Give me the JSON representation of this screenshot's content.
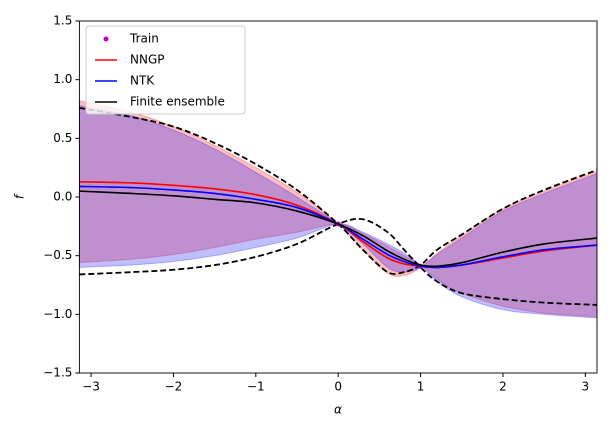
{
  "chart_data": {
    "type": "line",
    "xlabel": "α",
    "ylabel": "f",
    "xlim": [
      -3.14159,
      3.14159
    ],
    "ylim": [
      -1.5,
      1.5
    ],
    "xticks": [
      {
        "value": -3,
        "label": "−3"
      },
      {
        "value": -2,
        "label": "−2"
      },
      {
        "value": -1,
        "label": "−1"
      },
      0,
      1,
      2,
      3
    ],
    "yticks": [
      {
        "value": -1.5,
        "label": "−1.5"
      },
      {
        "value": -1.0,
        "label": "−1.0"
      },
      {
        "value": -0.5,
        "label": "−0.5"
      },
      {
        "value": 0,
        "label": "0.0"
      },
      0.5,
      {
        "value": 1,
        "label": "1.0"
      },
      1.5
    ],
    "legend": "upper left",
    "grid": false,
    "x": [
      -3.14159,
      -2.5,
      -2,
      -1.5,
      -1,
      -0.5,
      0,
      0.3,
      0.6,
      0.8,
      1.0,
      1.2,
      1.5,
      2,
      2.5,
      3.14159
    ],
    "series": [
      {
        "name": "Train",
        "color": "#bf00bf",
        "marker": "dot",
        "x": [
          0,
          1.0
        ],
        "values": [
          -0.23,
          -0.59
        ]
      },
      {
        "name": "NNGP",
        "color": "#ff0000",
        "band_style": "fill",
        "fill_opacity": 0.25,
        "values": [
          0.13,
          0.12,
          0.1,
          0.07,
          0.02,
          -0.07,
          -0.23,
          -0.38,
          -0.52,
          -0.57,
          -0.59,
          -0.6,
          -0.58,
          -0.52,
          -0.46,
          -0.41
        ],
        "band_upper": [
          0.82,
          0.72,
          0.6,
          0.44,
          0.25,
          0.04,
          -0.23,
          -0.45,
          -0.65,
          -0.67,
          -0.6,
          -0.48,
          -0.33,
          -0.1,
          0.05,
          0.22
        ],
        "band_lower": [
          -0.56,
          -0.53,
          -0.49,
          -0.43,
          -0.36,
          -0.3,
          -0.23,
          -0.31,
          -0.42,
          -0.5,
          -0.58,
          -0.7,
          -0.82,
          -0.93,
          -0.99,
          -1.02
        ]
      },
      {
        "name": "NTK",
        "color": "#0000ff",
        "band_style": "fill",
        "fill_opacity": 0.25,
        "values": [
          0.09,
          0.08,
          0.06,
          0.03,
          -0.02,
          -0.09,
          -0.23,
          -0.36,
          -0.49,
          -0.55,
          -0.59,
          -0.6,
          -0.58,
          -0.51,
          -0.45,
          -0.41
        ],
        "band_upper": [
          0.78,
          0.69,
          0.57,
          0.41,
          0.21,
          0.0,
          -0.23,
          -0.4,
          -0.6,
          -0.64,
          -0.6,
          -0.49,
          -0.35,
          -0.12,
          0.03,
          0.2
        ],
        "band_lower": [
          -0.6,
          -0.58,
          -0.55,
          -0.5,
          -0.43,
          -0.35,
          -0.23,
          -0.3,
          -0.4,
          -0.48,
          -0.58,
          -0.72,
          -0.85,
          -0.96,
          -1.0,
          -1.03
        ]
      },
      {
        "name": "Finite ensemble",
        "color": "#000000",
        "band_style": "dashed",
        "values": [
          0.05,
          0.03,
          0.01,
          -0.02,
          -0.05,
          -0.12,
          -0.23,
          -0.33,
          -0.46,
          -0.53,
          -0.58,
          -0.59,
          -0.56,
          -0.47,
          -0.4,
          -0.35
        ],
        "band_upper": [
          0.76,
          0.68,
          0.6,
          0.46,
          0.28,
          0.06,
          -0.23,
          -0.45,
          -0.64,
          -0.64,
          -0.58,
          -0.45,
          -0.32,
          -0.1,
          0.06,
          0.23
        ],
        "band_lower": [
          -0.66,
          -0.64,
          -0.62,
          -0.58,
          -0.51,
          -0.4,
          -0.23,
          -0.19,
          -0.3,
          -0.45,
          -0.6,
          -0.72,
          -0.82,
          -0.87,
          -0.9,
          -0.92
        ]
      }
    ]
  }
}
